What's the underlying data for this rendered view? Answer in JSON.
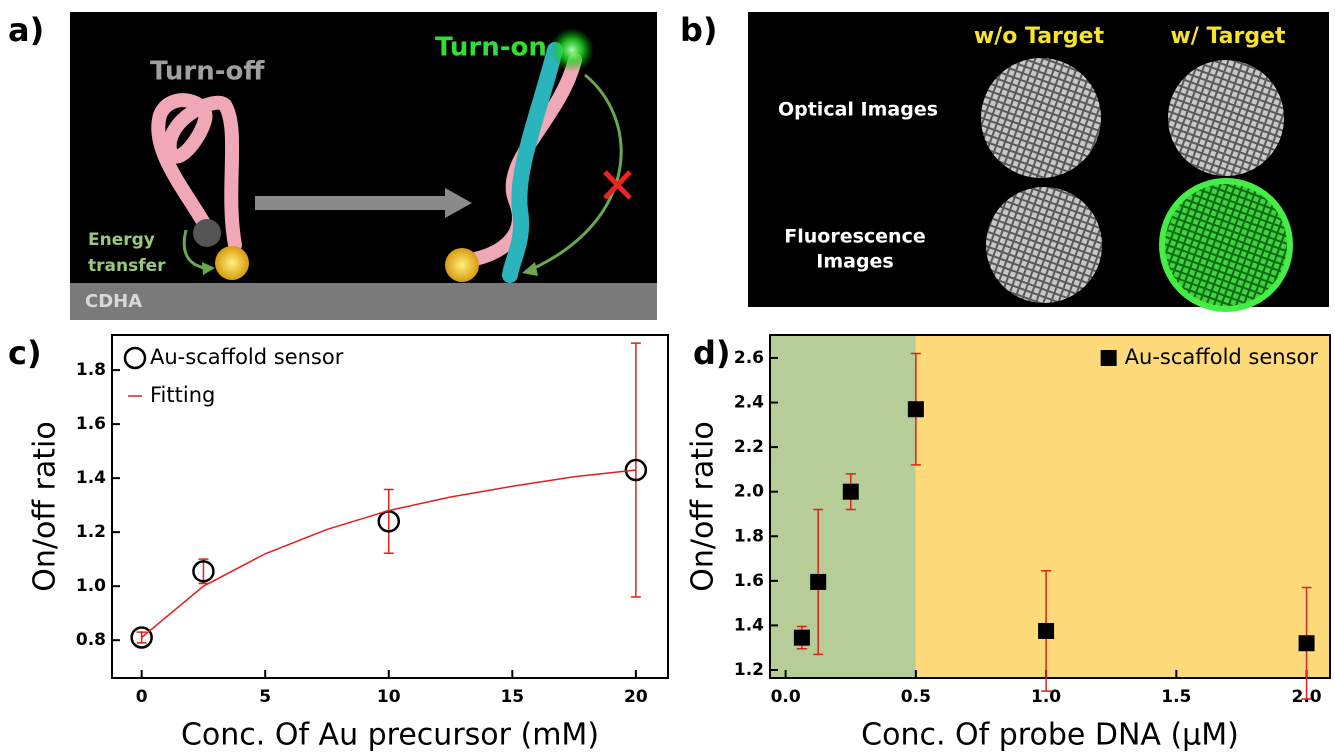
{
  "panels": {
    "a": {
      "label": "a)",
      "turn_off": "Turn-off",
      "turn_on": "Turn-on",
      "energy_transfer": [
        "Energy",
        "transfer"
      ],
      "substrate": "CDHA"
    },
    "b": {
      "label": "b)",
      "columns": [
        "w/o Target",
        "w/ Target"
      ],
      "rows": [
        [
          "Optical Images"
        ],
        [
          "Fluorescence",
          "Images"
        ]
      ]
    }
  },
  "chart_data": [
    {
      "type": "scatter",
      "panel_label": "c)",
      "xlabel": "Conc. Of Au precursor (mM)",
      "ylabel": "On/off ratio",
      "xlim": [
        -1.2,
        21.3
      ],
      "ylim": [
        0.66,
        1.93
      ],
      "xticks": [
        0,
        5,
        10,
        15,
        20
      ],
      "yticks": [
        0.8,
        {
          "value": 1,
          "label": "1.0"
        },
        1.2,
        1.4,
        1.6,
        1.8
      ],
      "legend": "upper left",
      "series": [
        {
          "name": "Au-scaffold sensor",
          "color": "#000000",
          "marker": "open-circle",
          "error_color": "#e0201b",
          "x": [
            0,
            2.5,
            10,
            20
          ],
          "values": [
            0.81,
            1.055,
            1.24,
            1.43
          ],
          "errors": [
            0.02,
            0.045,
            0.118,
            0.47
          ]
        },
        {
          "name": "Fitting",
          "color": "#e0201b",
          "marker": "line",
          "x": [
            0,
            2.5,
            5,
            7.5,
            10,
            12.5,
            15,
            17.5,
            20
          ],
          "values": [
            0.81,
            1.0,
            1.12,
            1.21,
            1.28,
            1.33,
            1.37,
            1.405,
            1.43
          ]
        }
      ]
    },
    {
      "type": "scatter",
      "panel_label": "d)",
      "xlabel": "Conc. Of probe DNA (μM)",
      "ylabel": "On/off ratio",
      "xlim": [
        -0.06,
        2.09
      ],
      "ylim": [
        1.164,
        2.703
      ],
      "xticks": [
        {
          "value": 0,
          "label": "0.0"
        },
        0.5,
        {
          "value": 1,
          "label": "1.0"
        },
        1.5,
        {
          "value": 2,
          "label": "2.0"
        }
      ],
      "yticks": [
        1.2,
        1.4,
        1.6,
        1.8,
        {
          "value": 2,
          "label": "2.0"
        },
        2.2,
        2.4,
        2.6
      ],
      "legend": "upper right",
      "shaded_regions": [
        {
          "from": -0.06,
          "to": 0.5,
          "color": "#b7cd98"
        },
        {
          "from": 0.5,
          "to": 2.09,
          "color": "#ffda7b"
        }
      ],
      "series": [
        {
          "name": "Au-scaffold sensor",
          "color": "#000000",
          "marker": "square",
          "error_color": "#e0201b",
          "x": [
            0.0625,
            0.125,
            0.25,
            0.5,
            1,
            2
          ],
          "values": [
            1.345,
            1.595,
            2.0,
            2.37,
            1.375,
            1.32
          ],
          "errors": [
            0.05,
            0.325,
            0.08,
            0.25,
            0.27,
            0.25
          ]
        }
      ]
    }
  ]
}
